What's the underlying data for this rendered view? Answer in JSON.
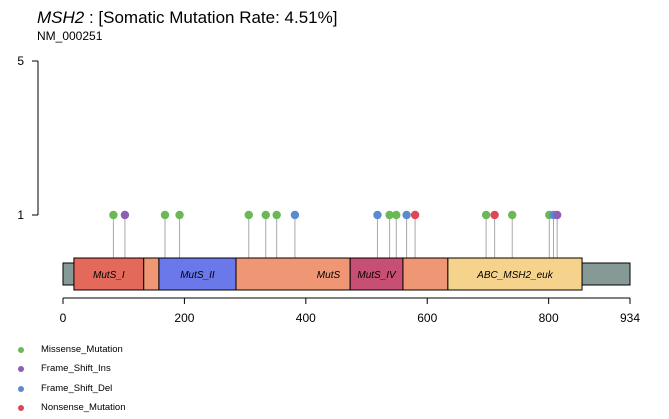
{
  "chart_data": {
    "type": "lollipop",
    "gene": "MSH2",
    "title_suffix": ": [Somatic Mutation Rate: 4.51%]",
    "subtitle": "NM_000251",
    "protein_length": 934,
    "x_ticks": [
      0,
      200,
      400,
      600,
      800,
      934
    ],
    "y_ticks": [
      1,
      5
    ],
    "ylim": [
      0,
      5
    ],
    "backbone_color": "#859a97",
    "domains": [
      {
        "name": "MutS_I",
        "start": 18,
        "end": 133,
        "color": "#e3695a"
      },
      {
        "name": "",
        "start": 133,
        "end": 158,
        "color": "#ef9675"
      },
      {
        "name": "MutS_II",
        "start": 158,
        "end": 285,
        "color": "#6a78ea"
      },
      {
        "name": "MutS",
        "start": 285,
        "end": 473,
        "color": "#ef9675"
      },
      {
        "name": "MutS_IV",
        "start": 473,
        "end": 560,
        "color": "#c84f74"
      },
      {
        "name": "",
        "start": 560,
        "end": 634,
        "color": "#ef9675"
      },
      {
        "name": "ABC_MSH2_euk",
        "start": 634,
        "end": 855,
        "color": "#f6d38c"
      }
    ],
    "mutation_types": [
      {
        "name": "Missense_Mutation",
        "color": "#6bb856"
      },
      {
        "name": "Frame_Shift_Ins",
        "color": "#8c5fb5"
      },
      {
        "name": "Frame_Shift_Del",
        "color": "#5a8ccc"
      },
      {
        "name": "Nonsense_Mutation",
        "color": "#e14656"
      }
    ],
    "mutations": [
      {
        "pos": 83,
        "count": 1,
        "type": "Missense_Mutation"
      },
      {
        "pos": 102,
        "count": 1,
        "type": "Frame_Shift_Ins"
      },
      {
        "pos": 168,
        "count": 1,
        "type": "Missense_Mutation"
      },
      {
        "pos": 192,
        "count": 1,
        "type": "Missense_Mutation"
      },
      {
        "pos": 306,
        "count": 1,
        "type": "Missense_Mutation"
      },
      {
        "pos": 334,
        "count": 1,
        "type": "Missense_Mutation"
      },
      {
        "pos": 352,
        "count": 1,
        "type": "Missense_Mutation"
      },
      {
        "pos": 382,
        "count": 1,
        "type": "Frame_Shift_Del"
      },
      {
        "pos": 518,
        "count": 1,
        "type": "Frame_Shift_Del"
      },
      {
        "pos": 538,
        "count": 1,
        "type": "Missense_Mutation"
      },
      {
        "pos": 549,
        "count": 1,
        "type": "Missense_Mutation"
      },
      {
        "pos": 566,
        "count": 1,
        "type": "Frame_Shift_Del"
      },
      {
        "pos": 580,
        "count": 1,
        "type": "Nonsense_Mutation"
      },
      {
        "pos": 697,
        "count": 1,
        "type": "Missense_Mutation"
      },
      {
        "pos": 711,
        "count": 1,
        "type": "Nonsense_Mutation"
      },
      {
        "pos": 740,
        "count": 1,
        "type": "Missense_Mutation"
      },
      {
        "pos": 801,
        "count": 1,
        "type": "Missense_Mutation"
      },
      {
        "pos": 808,
        "count": 1,
        "type": "Frame_Shift_Del"
      },
      {
        "pos": 814,
        "count": 1,
        "type": "Frame_Shift_Ins"
      }
    ]
  }
}
